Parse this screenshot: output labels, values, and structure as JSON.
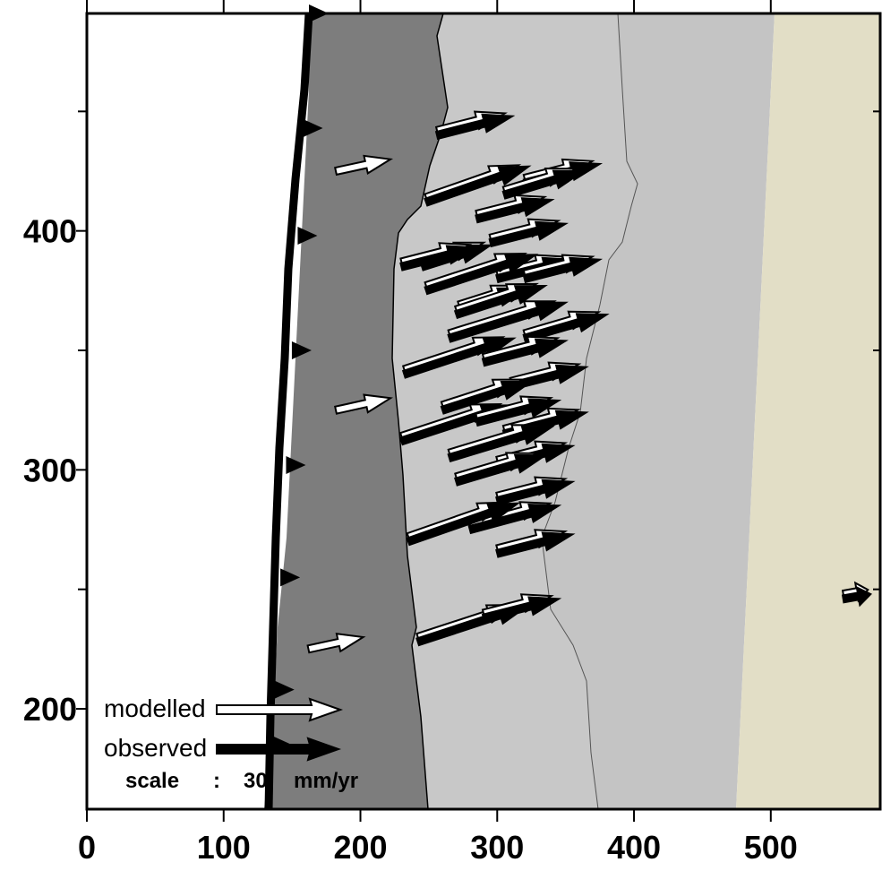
{
  "colors": {
    "ocean": "#ffffff",
    "forearc": "#7d7d7d",
    "land_light": "#c8c8c8",
    "land_far": "#c4c4c4",
    "inland": "#e2dec6",
    "trench": "#000000",
    "modelled_fill": "#ffffff",
    "observed_fill": "#000000"
  },
  "map": {
    "x_ticks": [
      "0",
      "100",
      "200",
      "300",
      "400",
      "500"
    ],
    "y_ticks": [
      "400",
      "300",
      "200"
    ]
  },
  "legend": {
    "modelled_label": "modelled",
    "observed_label": "observed",
    "scale_label": "scale",
    "scale_colon": ":",
    "scale_value": "30",
    "scale_unit": "mm/yr"
  },
  "chart_data": {
    "type": "scatter",
    "xlim": [
      0,
      580
    ],
    "ylim": [
      158,
      491
    ],
    "x_ticks": [
      0,
      100,
      200,
      300,
      400,
      500
    ],
    "y_ticks": [
      200,
      300,
      400
    ],
    "trench_triangles_y": [
      185,
      208,
      255,
      302,
      350,
      398,
      443,
      491
    ],
    "modelled": [
      [
        182,
        425,
        40,
        5
      ],
      [
        182,
        325,
        40,
        5
      ],
      [
        162,
        225,
        40,
        5
      ]
    ],
    "observed": [
      [
        256,
        440,
        55,
        8
      ],
      [
        248,
        412,
        75,
        15
      ],
      [
        285,
        405,
        55,
        8
      ],
      [
        320,
        420,
        55,
        8
      ],
      [
        305,
        415,
        58,
        10
      ],
      [
        245,
        385,
        50,
        9
      ],
      [
        295,
        395,
        55,
        8
      ],
      [
        300,
        380,
        55,
        8
      ],
      [
        230,
        385,
        55,
        8
      ],
      [
        248,
        375,
        80,
        15
      ],
      [
        272,
        367,
        50,
        9
      ],
      [
        320,
        380,
        55,
        8
      ],
      [
        270,
        365,
        65,
        12
      ],
      [
        265,
        355,
        85,
        15
      ],
      [
        320,
        355,
        60,
        10
      ],
      [
        232,
        340,
        80,
        15
      ],
      [
        290,
        345,
        60,
        9
      ],
      [
        310,
        335,
        55,
        8
      ],
      [
        260,
        325,
        65,
        12
      ],
      [
        305,
        315,
        60,
        9
      ],
      [
        230,
        312,
        80,
        15
      ],
      [
        285,
        320,
        60,
        9
      ],
      [
        265,
        305,
        75,
        13
      ],
      [
        300,
        302,
        55,
        8
      ],
      [
        270,
        295,
        65,
        11
      ],
      [
        280,
        275,
        65,
        10
      ],
      [
        300,
        287,
        55,
        8
      ],
      [
        235,
        270,
        80,
        16
      ],
      [
        300,
        265,
        55,
        8
      ],
      [
        242,
        228,
        80,
        15
      ],
      [
        290,
        238,
        55,
        8
      ],
      [
        553,
        246,
        20,
        2
      ]
    ]
  }
}
